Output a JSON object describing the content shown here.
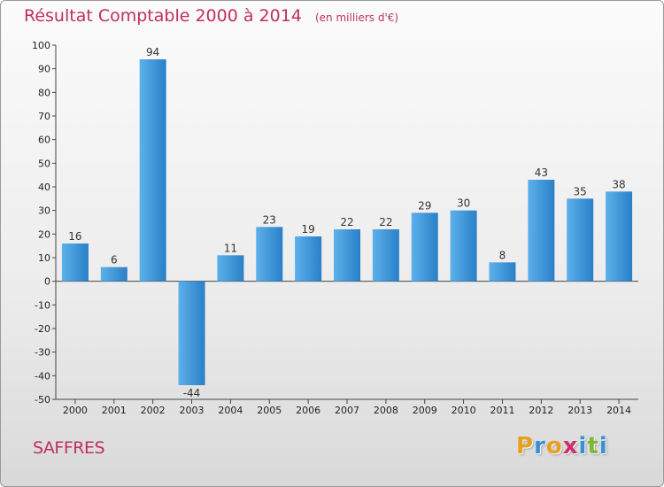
{
  "chart_data": {
    "type": "bar",
    "title": "Résultat Comptable 2000 à 2014",
    "unit": "(en milliers d'€)",
    "categories": [
      "2000",
      "2001",
      "2002",
      "2003",
      "2004",
      "2005",
      "2006",
      "2007",
      "2008",
      "2009",
      "2010",
      "2011",
      "2012",
      "2013",
      "2014"
    ],
    "values": [
      16,
      6,
      94,
      -44,
      11,
      23,
      19,
      22,
      22,
      29,
      30,
      8,
      43,
      35,
      38
    ],
    "ylim": [
      -50,
      100
    ],
    "yticks": [
      100,
      90,
      80,
      70,
      60,
      50,
      40,
      30,
      20,
      10,
      0,
      -10,
      -20,
      -30,
      -40,
      -50
    ],
    "grid": false,
    "xlabel": "",
    "ylabel": "",
    "bar_color": "#3a8fd4"
  },
  "commune": "SAFFRES",
  "brand": {
    "letters": [
      "P",
      "r",
      "o",
      "x",
      "i",
      "t",
      "i"
    ],
    "colors": [
      "#e8a020",
      "#3a8fd4",
      "#e8a020",
      "#d0306a",
      "#3a8fd4",
      "#7cb82f",
      "#3a8fd4"
    ]
  }
}
